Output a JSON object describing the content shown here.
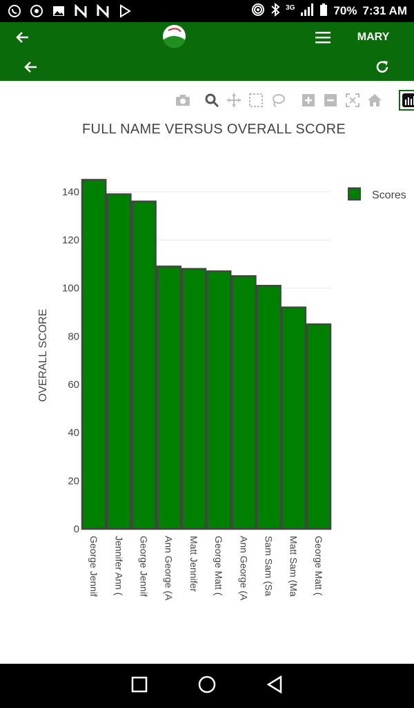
{
  "status_bar": {
    "battery": "70%",
    "time": "7:31 AM",
    "network": "3G",
    "left_icons": [
      "whatsapp-icon",
      "chrome-icon",
      "image-icon",
      "n-icon",
      "n-icon",
      "play-store-icon"
    ]
  },
  "app_bar": {
    "user_label": "MARY",
    "brand_color": "#0a6b0a"
  },
  "chart_data": {
    "type": "bar",
    "title": "FULL NAME VERSUS OVERALL SCORE",
    "xlabel": "",
    "ylabel": "OVERALL SCORE",
    "ylim": [
      0,
      145
    ],
    "yticks": [
      0,
      20,
      40,
      60,
      80,
      100,
      120,
      140
    ],
    "categories": [
      "George Jennif",
      "Jennifer Ann (",
      "George Jennif",
      "Ann George (A",
      "Matt Jennifer",
      "George Matt (",
      "Ann George (A",
      "Sam Sam (Sa",
      "Matt Sam (Ma",
      "George Matt ("
    ],
    "series": [
      {
        "name": "Scores",
        "values": [
          145,
          139,
          136,
          109,
          108,
          107,
          105,
          101,
          92,
          85
        ],
        "color": "#008000",
        "edge_color": "#444444"
      }
    ],
    "legend_position": "top-right",
    "grid": true
  }
}
